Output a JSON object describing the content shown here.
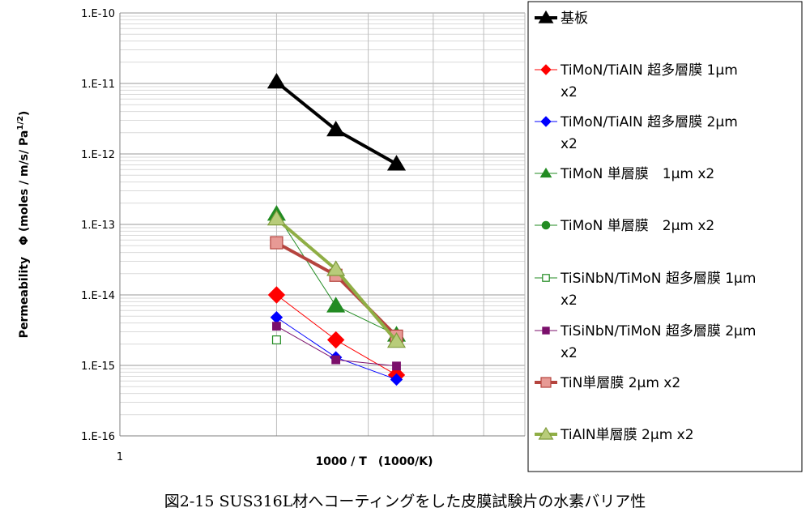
{
  "chart_data": {
    "type": "line",
    "title": "",
    "xlabel": "1000 / T　(1000/K)",
    "ylabel_main": "Permeability　Φ (moles / m/s/ Pa",
    "ylabel_sup": "1/2",
    "ylabel_close": ")",
    "x_tick_labels": [
      "1"
    ],
    "y_scale": "log",
    "ylim": [
      1e-16,
      1e-10
    ],
    "y_tick_labels": [
      "1.E-10",
      "1.E-11",
      "1.E-12",
      "1.E-13",
      "1.E-14",
      "1.E-15",
      "1.E-16"
    ],
    "x_points": [
      2.0,
      2.6,
      3.4
    ],
    "grid": true,
    "legend_position": "right",
    "series": [
      {
        "name": "基板",
        "name_line2": "",
        "color": "#000000",
        "marker": "triangle",
        "values": [
          1.05e-11,
          2.2e-12,
          7.2e-13
        ],
        "width": 4
      },
      {
        "name": "TiMoN/TiAlN 超多層膜 1μm",
        "name_line2": "x2",
        "color": "#ff0000",
        "marker": "diamond",
        "values": [
          1e-14,
          2.3e-15,
          7.3e-16
        ],
        "width": 1
      },
      {
        "name": "TiMoN/TiAlN 超多層膜 2μm",
        "name_line2": "x2",
        "color": "#0000ff",
        "marker": "diamond",
        "values": [
          4.8e-15,
          1.3e-15,
          6.3e-16
        ],
        "width": 1
      },
      {
        "name": "TiMoN 単層膜　1μm x2",
        "name_line2": "",
        "color": "#228b22",
        "marker": "triangle",
        "values": [
          1.4e-13,
          7e-15,
          2.7e-15
        ],
        "width": 1
      },
      {
        "name": "TiMoN 単層膜　2μm x2",
        "name_line2": "",
        "color": "#228b22",
        "marker": "circle",
        "values": [],
        "width": 1
      },
      {
        "name": "TiSiNbN/TiMoN 超多層膜 1μm",
        "name_line2": "x2",
        "color": "#228b22",
        "marker": "square-open",
        "values": [
          2.3e-15
        ],
        "width": 1
      },
      {
        "name": "TiSiNbN/TiMoN 超多層膜 2μm",
        "name_line2": "x2",
        "color": "#7b0f6b",
        "marker": "square",
        "values": [
          3.6e-15,
          1.2e-15,
          9.8e-16
        ],
        "width": 1
      },
      {
        "name": "TiN単層膜 2μm x2",
        "name_line2": "",
        "color": "#b5443e",
        "marker": "square-light",
        "values": [
          5.5e-14,
          1.9e-14,
          2.6e-15
        ],
        "width": 4
      },
      {
        "name": "TiAlN単層膜 2μm x2",
        "name_line2": "",
        "color": "#8fae45",
        "marker": "triangle-light",
        "values": [
          1.2e-13,
          2.3e-14,
          2.2e-15
        ],
        "width": 4
      }
    ]
  },
  "caption": "図2-15 SUS316L材へコーティングをした皮膜試験片の水素バリア性"
}
